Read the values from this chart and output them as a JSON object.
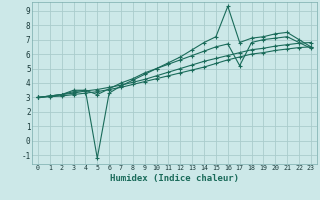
{
  "xlabel": "Humidex (Indice chaleur)",
  "bg_color": "#cce8e8",
  "grid_color": "#aacccc",
  "line_color": "#1a6b5a",
  "xlim": [
    -0.5,
    23.5
  ],
  "ylim": [
    -1.6,
    9.6
  ],
  "xticks": [
    0,
    1,
    2,
    3,
    4,
    5,
    6,
    7,
    8,
    9,
    10,
    11,
    12,
    13,
    14,
    15,
    16,
    17,
    18,
    19,
    20,
    21,
    22,
    23
  ],
  "yticks": [
    -1,
    0,
    1,
    2,
    3,
    4,
    5,
    6,
    7,
    8,
    9
  ],
  "series": [
    {
      "x": [
        0,
        1,
        2,
        3,
        4,
        5,
        6,
        7,
        8,
        9,
        10,
        11,
        12,
        13,
        14,
        15,
        16,
        17,
        18,
        19,
        20,
        21,
        22,
        23
      ],
      "y": [
        3.0,
        3.1,
        3.2,
        3.5,
        3.5,
        -1.2,
        3.3,
        3.8,
        4.2,
        4.6,
        5.0,
        5.4,
        5.8,
        6.3,
        6.8,
        7.2,
        9.3,
        6.8,
        7.1,
        7.2,
        7.4,
        7.5,
        7.0,
        6.5
      ]
    },
    {
      "x": [
        0,
        1,
        2,
        3,
        4,
        5,
        6,
        7,
        8,
        9,
        10,
        11,
        12,
        13,
        14,
        15,
        16,
        17,
        18,
        19,
        20,
        21,
        22,
        23
      ],
      "y": [
        3.0,
        3.1,
        3.2,
        3.4,
        3.5,
        3.2,
        3.6,
        4.0,
        4.3,
        4.7,
        5.0,
        5.3,
        5.6,
        5.9,
        6.2,
        6.5,
        6.7,
        5.2,
        6.8,
        7.0,
        7.1,
        7.2,
        6.8,
        6.4
      ]
    },
    {
      "x": [
        0,
        1,
        2,
        3,
        4,
        5,
        6,
        7,
        8,
        9,
        10,
        11,
        12,
        13,
        14,
        15,
        16,
        17,
        18,
        19,
        20,
        21,
        22,
        23
      ],
      "y": [
        3.0,
        3.05,
        3.1,
        3.2,
        3.3,
        3.4,
        3.55,
        3.7,
        3.9,
        4.1,
        4.3,
        4.5,
        4.7,
        4.9,
        5.1,
        5.35,
        5.6,
        5.8,
        6.0,
        6.1,
        6.25,
        6.35,
        6.45,
        6.5
      ]
    },
    {
      "x": [
        0,
        1,
        2,
        3,
        4,
        5,
        6,
        7,
        8,
        9,
        10,
        11,
        12,
        13,
        14,
        15,
        16,
        17,
        18,
        19,
        20,
        21,
        22,
        23
      ],
      "y": [
        3.0,
        3.1,
        3.2,
        3.3,
        3.45,
        3.55,
        3.7,
        3.85,
        4.05,
        4.25,
        4.5,
        4.75,
        5.0,
        5.25,
        5.5,
        5.7,
        5.9,
        6.1,
        6.3,
        6.4,
        6.55,
        6.65,
        6.75,
        6.8
      ]
    }
  ]
}
